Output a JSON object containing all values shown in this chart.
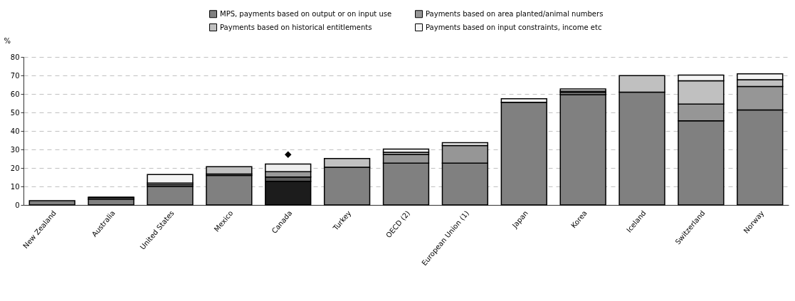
{
  "chart_data": {
    "type": "bar",
    "stacked": true,
    "ylabel": "%",
    "categories": [
      "New Zealand",
      "Australia",
      "United States",
      "Mexico",
      "Canada",
      "Turkey",
      "OECD (2)",
      "European Union (1)",
      "Japan",
      "Korea",
      "Iceland",
      "Switzerland",
      "Norway"
    ],
    "ylim": [
      0,
      80
    ],
    "yticks": [
      0,
      10,
      20,
      30,
      40,
      50,
      60,
      70,
      80
    ],
    "grid": "y",
    "legend": "top",
    "series": [
      {
        "name": "MPS, payments based on output or on input use",
        "color": "#808080",
        "colors": [
          "#808080",
          "#808080",
          "#808080",
          "#808080",
          "#1c1c1c",
          "#808080",
          "#808080",
          "#808080",
          "#808080",
          "#808080",
          "#808080",
          "#808080",
          "#808080"
        ],
        "values": [
          2.3,
          3.0,
          10.0,
          16.0,
          12.8,
          20.4,
          22.6,
          22.6,
          55.5,
          59.6,
          61.0,
          45.5,
          51.3
        ]
      },
      {
        "name": "Payments based on area planted/animal numbers",
        "color": "#969696",
        "colors": [
          "#969696",
          "#969696",
          "#969696",
          "#969696",
          "#5a5a5a",
          "#969696",
          "#969696",
          "#969696",
          "#969696",
          "#969696",
          "#969696",
          "#969696",
          "#969696"
        ],
        "values": [
          0,
          0.8,
          1.0,
          0.7,
          2.3,
          0,
          4.7,
          9.5,
          0,
          1.2,
          0,
          9.0,
          12.7
        ]
      },
      {
        "name": "Payments based on historical entitlements",
        "color": "#c0c0c0",
        "colors": [
          "#c0c0c0",
          "#c0c0c0",
          "#c0c0c0",
          "#c0c0c0",
          "#999999",
          "#c0c0c0",
          "#c0c0c0",
          null,
          "#c0c0c0",
          "#c0c0c0",
          "#c0c0c0",
          "#c0c0c0",
          "#c0c0c0"
        ],
        "values": [
          0,
          0.4,
          0.8,
          4.0,
          2.9,
          4.7,
          1.2,
          null,
          0,
          0.7,
          8.9,
          12.6,
          3.7
        ]
      },
      {
        "name": "Payments based on input constraints, income etc",
        "color": "#f4f4f4",
        "colors": [
          "#f4f4f4",
          "#f4f4f4",
          "#f4f4f4",
          "#f4f4f4",
          "#eeeeee",
          "#f4f4f4",
          "#f4f4f4",
          "#f4f4f4",
          "#f4f4f4",
          "#f4f4f4",
          "#f4f4f4",
          "#f4f4f4",
          "#f4f4f4"
        ],
        "values": [
          0,
          0,
          4.6,
          0,
          4.1,
          0,
          1.7,
          1.6,
          1.9,
          1.2,
          0,
          3.1,
          3.2
        ]
      },
      {
        "type": "scatter",
        "x": [
          "Canada"
        ],
        "values": [
          27.2
        ],
        "color": "#000000",
        "marker": "diamond"
      }
    ]
  }
}
